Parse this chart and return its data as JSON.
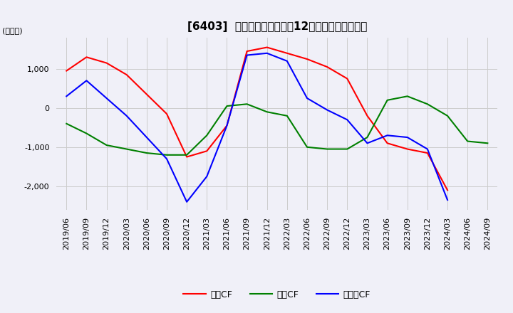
{
  "title": "[6403]  キャッシュフローの12か月移動合計の推移",
  "ylabel": "(百万円)",
  "ylim": [
    -2600,
    1800
  ],
  "yticks": [
    -2000,
    -1000,
    0,
    1000
  ],
  "legend_labels": [
    "営業CF",
    "投賄CF",
    "フリーCF"
  ],
  "line_colors": [
    "#ff0000",
    "#008000",
    "#0000ff"
  ],
  "dates": [
    "2019/06",
    "2019/09",
    "2019/12",
    "2020/03",
    "2020/06",
    "2020/09",
    "2020/12",
    "2021/03",
    "2021/06",
    "2021/09",
    "2021/12",
    "2022/03",
    "2022/06",
    "2022/09",
    "2022/12",
    "2023/03",
    "2023/06",
    "2023/09",
    "2023/12",
    "2024/03",
    "2024/06",
    "2024/09"
  ],
  "operating_cf": [
    950,
    1300,
    1150,
    850,
    350,
    -150,
    -1250,
    -1100,
    -450,
    1450,
    1550,
    1400,
    1250,
    1050,
    750,
    -200,
    -900,
    -1050,
    -1150,
    -2100,
    null,
    null
  ],
  "investing_cf": [
    -400,
    -650,
    -950,
    -1050,
    -1150,
    -1200,
    -1200,
    -700,
    50,
    100,
    -100,
    -200,
    -1000,
    -1050,
    -1050,
    -750,
    200,
    300,
    100,
    -200,
    -850,
    -900
  ],
  "free_cf": [
    300,
    700,
    250,
    -200,
    -750,
    -1300,
    -2400,
    -1750,
    -450,
    1350,
    1400,
    1200,
    250,
    -50,
    -300,
    -900,
    -700,
    -750,
    -1050,
    -2350,
    null,
    null
  ],
  "background_color": "#f0f0f8",
  "grid_color": "#cccccc",
  "title_fontsize": 11,
  "tick_fontsize": 8,
  "legend_fontsize": 9
}
